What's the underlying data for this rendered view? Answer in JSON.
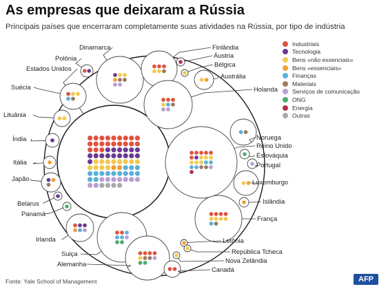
{
  "title": "As empresas que deixaram a Rússia",
  "subtitle": "Principais países que encerraram completamente suas atividades na Rússia, por tipo de indústria",
  "source": "Fonte: Yale School of Management",
  "logo": "AFP",
  "chart_data": {
    "type": "packed-bubble",
    "industries": [
      {
        "name": "Industriais",
        "color": "#e0533f"
      },
      {
        "name": "Tecnologia",
        "color": "#6a3a93"
      },
      {
        "name": "Bens «não essenciais»",
        "color": "#f2c94c"
      },
      {
        "name": "Bens «essenciais»",
        "color": "#f0a035"
      },
      {
        "name": "Finanças",
        "color": "#5ab0d8"
      },
      {
        "name": "Materiais",
        "color": "#9a7a62"
      },
      {
        "name": "Serviços de comunicação",
        "color": "#b89fd1"
      },
      {
        "name": "ONG",
        "color": "#4cab70"
      },
      {
        "name": "Energia",
        "color": "#b0304a"
      },
      {
        "name": "Outras",
        "color": "#a9a9a9"
      }
    ],
    "countries": [
      {
        "name": "Estados Unidos",
        "counts": [
          21,
          16,
          12,
          2,
          14,
          0,
          9,
          0,
          0,
          4
        ]
      },
      {
        "name": "Dinamarca",
        "counts": [
          0,
          1,
          2,
          1,
          0,
          2,
          2,
          0,
          0,
          0
        ]
      },
      {
        "name": "Finlândia",
        "counts": [
          3,
          0,
          2,
          0,
          0,
          1,
          0,
          0,
          0,
          0
        ]
      },
      {
        "name": "Áustria",
        "counts": [
          0,
          0,
          0,
          0,
          0,
          0,
          0,
          0,
          1,
          0
        ]
      },
      {
        "name": "Bélgica",
        "counts": [
          0,
          0,
          1,
          0,
          0,
          0,
          0,
          0,
          0,
          0
        ]
      },
      {
        "name": "Polônia",
        "counts": [
          1,
          1,
          0,
          0,
          0,
          0,
          0,
          0,
          0,
          0
        ]
      },
      {
        "name": "Austrália",
        "counts": [
          0,
          0,
          1,
          1,
          0,
          0,
          0,
          0,
          0,
          0
        ]
      },
      {
        "name": "Holanda",
        "counts": [
          3,
          0,
          1,
          0,
          1,
          1,
          2,
          0,
          0,
          0
        ]
      },
      {
        "name": "Suécia",
        "counts": [
          1,
          0,
          2,
          0,
          1,
          1,
          0,
          0,
          0,
          0
        ]
      },
      {
        "name": "Lituânia",
        "counts": [
          0,
          0,
          2,
          0,
          0,
          0,
          0,
          0,
          0,
          0
        ]
      },
      {
        "name": "Noruega",
        "counts": [
          0,
          0,
          0,
          0,
          1,
          1,
          0,
          0,
          0,
          0
        ]
      },
      {
        "name": "Índia",
        "counts": [
          0,
          1,
          0,
          0,
          0,
          0,
          0,
          0,
          0,
          0
        ]
      },
      {
        "name": "Reino Unido",
        "counts": [
          6,
          1,
          6,
          0,
          4,
          2,
          1,
          0,
          1,
          0
        ]
      },
      {
        "name": "Eslováquia",
        "counts": [
          0,
          0,
          0,
          0,
          0,
          0,
          0,
          1,
          0,
          0
        ]
      },
      {
        "name": "Itália",
        "counts": [
          0,
          0,
          0,
          1,
          0,
          0,
          0,
          0,
          0,
          0
        ]
      },
      {
        "name": "Portugal",
        "counts": [
          0,
          0,
          0,
          0,
          0,
          0,
          1,
          0,
          0,
          0
        ]
      },
      {
        "name": "Japão",
        "counts": [
          0,
          1,
          0,
          1,
          0,
          1,
          0,
          0,
          0,
          0
        ]
      },
      {
        "name": "Luxemburgo",
        "counts": [
          0,
          0,
          1,
          1,
          0,
          0,
          0,
          0,
          0,
          0
        ]
      },
      {
        "name": "Belarus",
        "counts": [
          0,
          1,
          0,
          0,
          0,
          0,
          0,
          0,
          0,
          0
        ]
      },
      {
        "name": "Islândia",
        "counts": [
          0,
          0,
          0,
          1,
          0,
          0,
          0,
          0,
          0,
          0
        ]
      },
      {
        "name": "Panamá",
        "counts": [
          0,
          0,
          0,
          0,
          0,
          0,
          0,
          1,
          0,
          0
        ]
      },
      {
        "name": "França",
        "counts": [
          4,
          0,
          4,
          0,
          1,
          1,
          0,
          0,
          0,
          0
        ]
      },
      {
        "name": "Irlanda",
        "counts": [
          1,
          2,
          0,
          1,
          1,
          0,
          1,
          0,
          0,
          0
        ]
      },
      {
        "name": "Letônia",
        "counts": [
          0,
          0,
          0,
          1,
          0,
          0,
          0,
          0,
          0,
          0
        ]
      },
      {
        "name": "Suiça",
        "counts": [
          2,
          0,
          0,
          0,
          3,
          0,
          1,
          2,
          0,
          0
        ]
      },
      {
        "name": "República Tcheca",
        "counts": [
          0,
          0,
          1,
          0,
          0,
          0,
          0,
          0,
          0,
          0
        ]
      },
      {
        "name": "Alemanha",
        "counts": [
          4,
          0,
          1,
          0,
          0,
          2,
          1,
          2,
          0,
          0
        ]
      },
      {
        "name": "Nova Zelândia",
        "counts": [
          0,
          0,
          1,
          0,
          0,
          0,
          0,
          0,
          0,
          0
        ]
      },
      {
        "name": "Canadá",
        "counts": [
          2,
          0,
          0,
          0,
          0,
          0,
          0,
          0,
          0,
          0
        ]
      }
    ]
  }
}
